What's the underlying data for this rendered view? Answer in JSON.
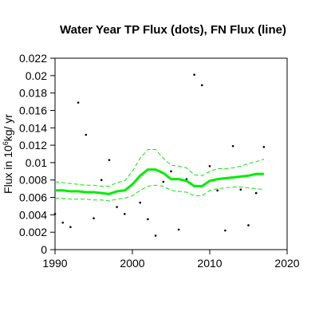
{
  "chart_data": {
    "type": "scatter",
    "title": "Water Year TP Flux (dots), FN Flux (line)",
    "ylabel": {
      "prefix": "Flux in 10",
      "exponent": "6",
      "suffix": "kg/ yr"
    },
    "xlabel": "",
    "xlim": [
      1990,
      2020
    ],
    "ylim": [
      0,
      0.022
    ],
    "x_ticks": [
      1990,
      2000,
      2010,
      2020
    ],
    "x_tick_labels": [
      "1990",
      "2000",
      "2010",
      "2020"
    ],
    "y_ticks": [
      0,
      0.002,
      0.004,
      0.006,
      0.008,
      0.01,
      0.012,
      0.014,
      0.016,
      0.018,
      0.02,
      0.022
    ],
    "y_tick_labels": [
      "0",
      "0.002",
      "0.004",
      "0.006",
      "0.008",
      "0.01",
      "0.012",
      "0.014",
      "0.016",
      "0.018",
      "0.02",
      "0.022"
    ],
    "grid": false,
    "colors": {
      "dots": "#000000",
      "line": "#00ee00",
      "band": "#00ee00",
      "axes": "#000000"
    },
    "series": [
      {
        "kind": "points",
        "x": [
          1990,
          1991,
          1992,
          1993,
          1994,
          1995,
          1996,
          1997,
          1998,
          1999,
          2000,
          2001,
          2002,
          2003,
          2004,
          2005,
          2006,
          2007,
          2008,
          2009,
          2010,
          2011,
          2012,
          2013,
          2014,
          2015,
          2016,
          2017
        ],
        "y": [
          0.0041,
          0.0031,
          0.0026,
          0.0169,
          0.0132,
          0.0036,
          0.008,
          0.0103,
          0.0049,
          0.0041,
          0.0075,
          0.0054,
          0.0035,
          0.0016,
          0.0078,
          0.009,
          0.0023,
          0.0081,
          0.0201,
          0.0189,
          0.0096,
          0.0068,
          0.0022,
          0.0119,
          0.0069,
          0.0028,
          0.0065,
          0.0118
        ]
      },
      {
        "kind": "line",
        "x": [
          1990,
          1991,
          1992,
          1993,
          1994,
          1995,
          1996,
          1997,
          1998,
          1999,
          2000,
          2001,
          2002,
          2003,
          2004,
          2005,
          2006,
          2007,
          2008,
          2009,
          2010,
          2011,
          2012,
          2013,
          2014,
          2015,
          2016,
          2017
        ],
        "y": [
          0.0068,
          0.0068,
          0.0067,
          0.0067,
          0.0066,
          0.0066,
          0.0065,
          0.0064,
          0.0067,
          0.0068,
          0.0075,
          0.0085,
          0.0092,
          0.0092,
          0.0088,
          0.0081,
          0.0081,
          0.0079,
          0.0073,
          0.0073,
          0.0079,
          0.0081,
          0.0082,
          0.0083,
          0.0084,
          0.0085,
          0.0087,
          0.0087
        ]
      },
      {
        "kind": "band-upper",
        "x": [
          1990,
          1991,
          1992,
          1993,
          1994,
          1995,
          1996,
          1997,
          1998,
          1999,
          2000,
          2001,
          2002,
          2003,
          2004,
          2005,
          2006,
          2007,
          2008,
          2009,
          2010,
          2011,
          2012,
          2013,
          2014,
          2015,
          2016,
          2017
        ],
        "y": [
          0.0078,
          0.0077,
          0.0076,
          0.0075,
          0.0074,
          0.0074,
          0.0073,
          0.0073,
          0.0077,
          0.0079,
          0.009,
          0.0105,
          0.0115,
          0.0115,
          0.0105,
          0.0097,
          0.0096,
          0.0094,
          0.0086,
          0.0085,
          0.009,
          0.0093,
          0.0093,
          0.0094,
          0.0096,
          0.0099,
          0.0101,
          0.0104
        ]
      },
      {
        "kind": "band-lower",
        "x": [
          1990,
          1991,
          1992,
          1993,
          1994,
          1995,
          1996,
          1997,
          1998,
          1999,
          2000,
          2001,
          2002,
          2003,
          2004,
          2005,
          2006,
          2007,
          2008,
          2009,
          2010,
          2011,
          2012,
          2013,
          2014,
          2015,
          2016,
          2017
        ],
        "y": [
          0.0059,
          0.0059,
          0.0058,
          0.0058,
          0.0058,
          0.0057,
          0.0057,
          0.0056,
          0.0058,
          0.0059,
          0.0062,
          0.0068,
          0.0073,
          0.0074,
          0.0073,
          0.0068,
          0.0067,
          0.0066,
          0.0062,
          0.0062,
          0.0068,
          0.007,
          0.0071,
          0.0072,
          0.0072,
          0.0071,
          0.007,
          0.0069
        ]
      }
    ]
  }
}
